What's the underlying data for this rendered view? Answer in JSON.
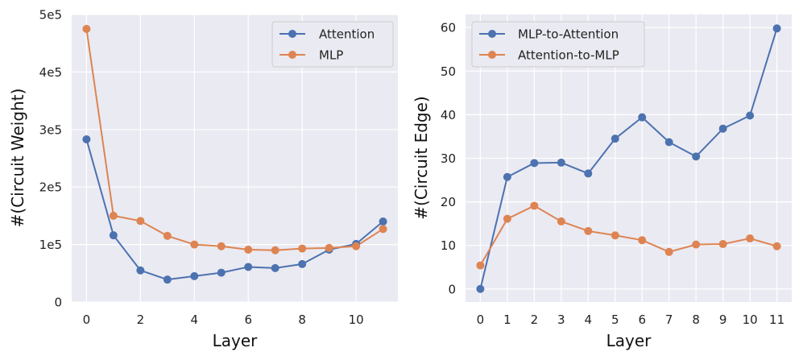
{
  "chart_data": [
    {
      "type": "line",
      "title": "",
      "xlabel": "Layer",
      "ylabel": "#(Circuit Weight)",
      "x": [
        0,
        1,
        2,
        3,
        4,
        5,
        6,
        7,
        8,
        9,
        10,
        11
      ],
      "xlim": [
        -0.55,
        11.55
      ],
      "xticks": [
        0,
        2,
        4,
        6,
        8,
        10
      ],
      "xtick_labels": [
        "0",
        "2",
        "4",
        "6",
        "8",
        "10"
      ],
      "ylim": [
        0,
        500000
      ],
      "yticks": [
        0,
        100000,
        200000,
        300000,
        400000,
        500000
      ],
      "ytick_labels": [
        "0",
        "1e5",
        "2e5",
        "3e5",
        "4e5",
        "5e5"
      ],
      "grid": true,
      "legend": "top-right",
      "series": [
        {
          "name": "Attention",
          "color": "#4c72b0",
          "values": [
            283000,
            116000,
            55000,
            39000,
            45000,
            51000,
            61000,
            59000,
            66000,
            91000,
            101000,
            140000
          ]
        },
        {
          "name": "MLP",
          "color": "#dd8452",
          "values": [
            475000,
            150000,
            141000,
            115000,
            100000,
            97000,
            91000,
            90000,
            93000,
            94000,
            97000,
            127000
          ]
        }
      ]
    },
    {
      "type": "line",
      "title": "",
      "xlabel": "Layer",
      "ylabel": "#(Circuit Edge)",
      "x": [
        0,
        1,
        2,
        3,
        4,
        5,
        6,
        7,
        8,
        9,
        10,
        11
      ],
      "xlim": [
        -0.55,
        11.55
      ],
      "xticks": [
        0,
        1,
        2,
        3,
        4,
        5,
        6,
        7,
        8,
        9,
        10,
        11
      ],
      "xtick_labels": [
        "0",
        "1",
        "2",
        "3",
        "4",
        "5",
        "6",
        "7",
        "8",
        "9",
        "10",
        "11"
      ],
      "ylim": [
        -3,
        63
      ],
      "yticks": [
        0,
        10,
        20,
        30,
        40,
        50,
        60
      ],
      "ytick_labels": [
        "0",
        "10",
        "20",
        "30",
        "40",
        "50",
        "60"
      ],
      "grid": true,
      "legend": "top-left",
      "series": [
        {
          "name": "MLP-to-Attention",
          "color": "#4c72b0",
          "values": [
            0,
            25.7,
            28.9,
            29.0,
            26.5,
            34.5,
            39.4,
            33.7,
            30.4,
            36.8,
            39.8,
            59.8
          ]
        },
        {
          "name": "Attention-to-MLP",
          "color": "#dd8452",
          "values": [
            5.4,
            16.1,
            19.1,
            15.5,
            13.3,
            12.3,
            11.2,
            8.5,
            10.2,
            10.3,
            11.6,
            9.8
          ]
        }
      ]
    }
  ]
}
